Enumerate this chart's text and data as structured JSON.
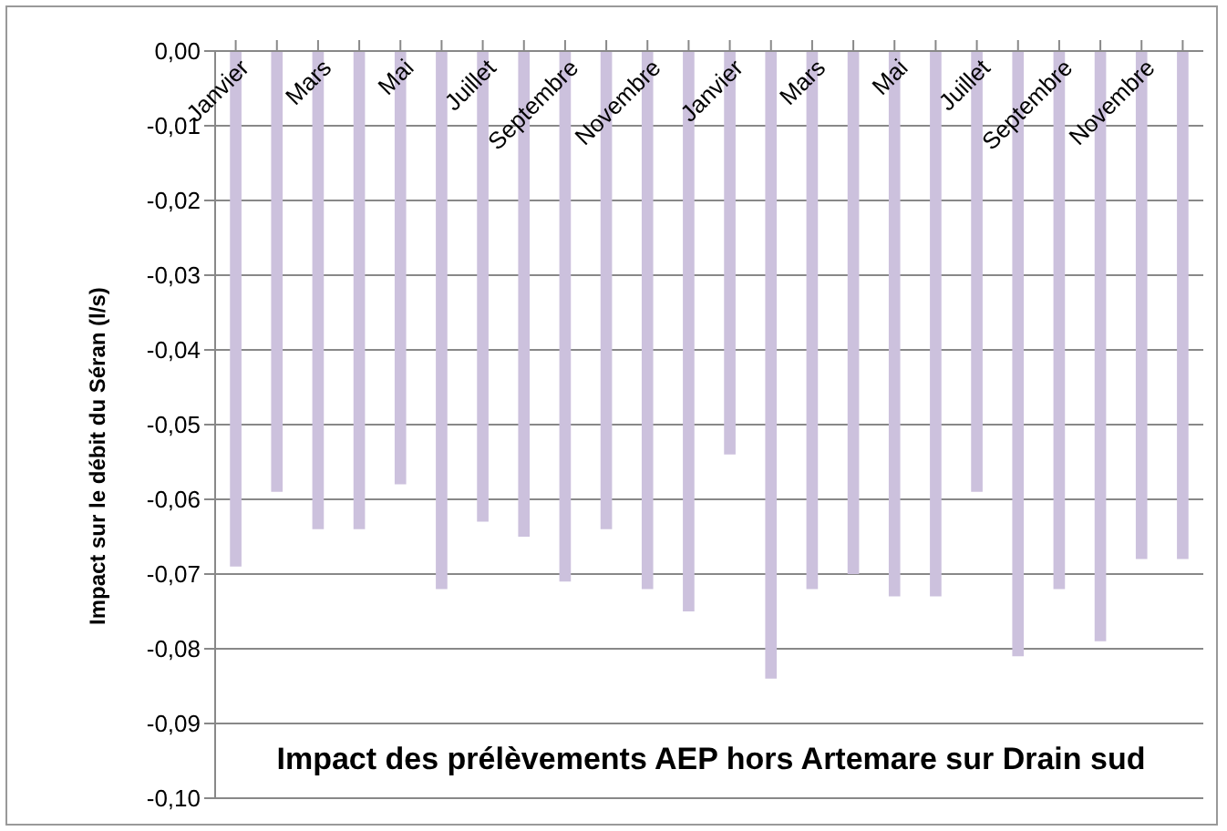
{
  "chart_data": {
    "type": "bar",
    "title": "Impact des prélèvements AEP hors Artemare sur Drain sud",
    "ylabel": "Impact sur  le débit du Séran (l/s)",
    "categories": [
      "Janvier",
      null,
      "Mars",
      null,
      "Mai",
      null,
      "Juillet",
      null,
      "Septembre",
      null,
      "Novembre",
      null,
      "Janvier",
      null,
      "Mars",
      null,
      "Mai",
      null,
      "Juillet",
      null,
      "Septembre",
      null,
      "Novembre",
      null
    ],
    "values": [
      -0.069,
      -0.059,
      -0.064,
      -0.064,
      -0.058,
      -0.072,
      -0.063,
      -0.065,
      -0.071,
      -0.064,
      -0.072,
      -0.075,
      -0.054,
      -0.084,
      -0.072,
      -0.07,
      -0.073,
      -0.073,
      -0.059,
      -0.081,
      -0.072,
      -0.079,
      -0.068,
      -0.068
    ],
    "color": "#ccc1dd",
    "ylim": [
      -0.1,
      0
    ],
    "yticks": [
      {
        "value": 0,
        "label": "0,00"
      },
      {
        "value": -0.01,
        "label": "-0,01"
      },
      {
        "value": -0.02,
        "label": "-0,02"
      },
      {
        "value": -0.03,
        "label": "-0,03"
      },
      {
        "value": -0.04,
        "label": "-0,04"
      },
      {
        "value": -0.05,
        "label": "-0,05"
      },
      {
        "value": -0.06,
        "label": "-0,06"
      },
      {
        "value": -0.07,
        "label": "-0,07"
      },
      {
        "value": -0.08,
        "label": "-0,08"
      },
      {
        "value": -0.09,
        "label": "-0,09"
      },
      {
        "value": -0.1,
        "label": "-0,10"
      }
    ],
    "grid": "y",
    "legend": false
  }
}
